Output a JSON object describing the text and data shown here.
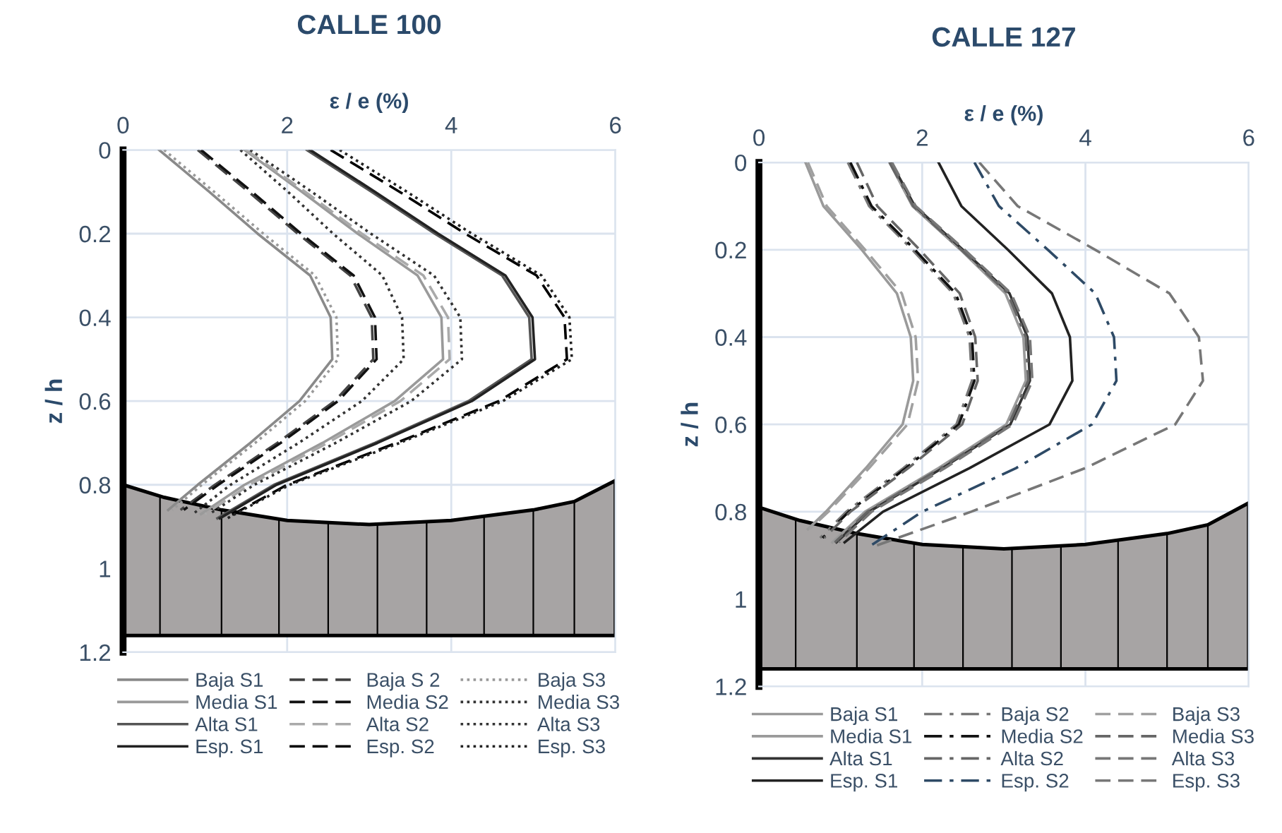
{
  "chart_data": [
    {
      "type": "line",
      "title": "CALLE 100",
      "xlabel": "ε / e (%)",
      "ylabel": "z / h",
      "xlim": [
        0,
        6
      ],
      "xticks": [
        0,
        2,
        4,
        6
      ],
      "ylim": [
        1.2,
        0
      ],
      "yticks": [
        0,
        0.2,
        0.4,
        0.6,
        0.8,
        1,
        1.2
      ],
      "grid": true,
      "legend": "bottom",
      "marker": "none",
      "series": [
        {
          "name": "Baja S1",
          "color": "#8a8a8a",
          "line_style": "solid",
          "x": [
            0.44,
            1.05,
            1.64,
            2.28,
            2.53,
            2.55,
            2.15,
            1.55,
            0.91,
            0.55
          ],
          "values": [
            0,
            0.1,
            0.2,
            0.3,
            0.4,
            0.5,
            0.6,
            0.7,
            0.8,
            0.86
          ]
        },
        {
          "name": "Media S1",
          "color": "#9a9a9a",
          "line_style": "solid",
          "x": [
            1.48,
            2.18,
            2.86,
            3.59,
            3.88,
            3.9,
            3.31,
            2.43,
            1.48,
            0.95
          ],
          "values": [
            0,
            0.1,
            0.2,
            0.3,
            0.4,
            0.5,
            0.6,
            0.7,
            0.8,
            0.87
          ]
        },
        {
          "name": "Alta S1",
          "color": "#555555",
          "line_style": "solid",
          "x": [
            2.24,
            3.03,
            3.8,
            4.62,
            4.95,
            4.98,
            4.21,
            3.07,
            1.84,
            1.15
          ],
          "values": [
            0,
            0.1,
            0.2,
            0.3,
            0.4,
            0.5,
            0.6,
            0.7,
            0.8,
            0.88
          ]
        },
        {
          "name": "Esp. S1",
          "color": "#222222",
          "line_style": "solid",
          "x": [
            2.28,
            3.07,
            3.84,
            4.66,
            4.99,
            5.02,
            4.25,
            3.1,
            1.87,
            1.18
          ],
          "values": [
            0,
            0.1,
            0.2,
            0.3,
            0.4,
            0.5,
            0.6,
            0.7,
            0.8,
            0.88
          ]
        },
        {
          "name": "Baja S 2",
          "color": "#444444",
          "line_style": "dashed",
          "x": [
            0.91,
            1.53,
            2.13,
            2.77,
            3.03,
            3.05,
            2.58,
            1.88,
            1.12,
            0.7
          ],
          "values": [
            0,
            0.1,
            0.2,
            0.3,
            0.4,
            0.5,
            0.6,
            0.7,
            0.8,
            0.86
          ]
        },
        {
          "name": "Media S2",
          "color": "#111111",
          "line_style": "dashed",
          "x": [
            0.95,
            1.57,
            2.17,
            2.81,
            3.07,
            3.09,
            2.62,
            1.92,
            1.16,
            0.74
          ],
          "values": [
            0,
            0.1,
            0.2,
            0.3,
            0.4,
            0.5,
            0.6,
            0.7,
            0.8,
            0.86
          ]
        },
        {
          "name": "Alta S2",
          "color": "#aaaaaa",
          "line_style": "dashed",
          "x": [
            1.5,
            2.22,
            2.91,
            3.66,
            3.96,
            3.98,
            3.38,
            2.49,
            1.54,
            1.0
          ],
          "values": [
            0,
            0.1,
            0.2,
            0.3,
            0.4,
            0.5,
            0.6,
            0.7,
            0.8,
            0.87
          ]
        },
        {
          "name": "Esp. S2",
          "color": "#000000",
          "line_style": "dashed",
          "x": [
            2.53,
            3.37,
            4.17,
            5.04,
            5.38,
            5.41,
            4.58,
            3.33,
            2.0,
            1.25
          ],
          "values": [
            0,
            0.1,
            0.2,
            0.3,
            0.4,
            0.5,
            0.6,
            0.7,
            0.8,
            0.88
          ]
        },
        {
          "name": "Baja S3",
          "color": "#9a9a9a",
          "line_style": "dotted",
          "x": [
            0.5,
            1.11,
            1.71,
            2.34,
            2.6,
            2.62,
            2.22,
            1.61,
            0.96,
            0.6
          ],
          "values": [
            0,
            0.1,
            0.2,
            0.3,
            0.4,
            0.5,
            0.6,
            0.7,
            0.8,
            0.86
          ]
        },
        {
          "name": "Media S3",
          "color": "#333333",
          "line_style": "dotted",
          "x": [
            1.43,
            2.01,
            2.56,
            3.16,
            3.4,
            3.42,
            2.91,
            2.14,
            1.31,
            0.85
          ],
          "values": [
            0,
            0.1,
            0.2,
            0.3,
            0.4,
            0.5,
            0.6,
            0.7,
            0.8,
            0.87
          ]
        },
        {
          "name": "Alta S3",
          "color": "#333333",
          "line_style": "dotted",
          "x": [
            1.55,
            2.3,
            3.02,
            3.79,
            4.11,
            4.13,
            3.51,
            2.59,
            1.6,
            1.05
          ],
          "values": [
            0,
            0.1,
            0.2,
            0.3,
            0.4,
            0.5,
            0.6,
            0.7,
            0.8,
            0.87
          ]
        },
        {
          "name": "Esp. S3",
          "color": "#222222",
          "line_style": "dotted",
          "x": [
            2.64,
            3.46,
            4.25,
            5.1,
            5.44,
            5.47,
            4.63,
            3.37,
            2.03,
            1.27
          ],
          "values": [
            0,
            0.1,
            0.2,
            0.3,
            0.4,
            0.5,
            0.6,
            0.7,
            0.8,
            0.88
          ]
        }
      ]
    },
    {
      "type": "line",
      "title": "CALLE 127",
      "xlabel": "ε / e (%)",
      "ylabel": "z / h",
      "xlim": [
        0,
        6
      ],
      "xticks": [
        0,
        2,
        4,
        6
      ],
      "ylim": [
        1.2,
        0
      ],
      "yticks": [
        0,
        0.2,
        0.4,
        0.6,
        0.8,
        1,
        1.2
      ],
      "grid": true,
      "legend": "bottom",
      "marker": "none",
      "series": [
        {
          "name": "Baja S1",
          "color": "#9a9a9a",
          "line_style": "solid",
          "x": [
            0.57,
            0.79,
            1.26,
            1.69,
            1.86,
            1.89,
            1.76,
            1.31,
            0.82,
            0.6
          ],
          "values": [
            0,
            0.1,
            0.2,
            0.3,
            0.4,
            0.5,
            0.6,
            0.7,
            0.8,
            0.84
          ]
        },
        {
          "name": "Media S1",
          "color": "#9a9a9a",
          "line_style": "solid",
          "x": [
            1.6,
            1.88,
            2.47,
            3.02,
            3.24,
            3.27,
            3.03,
            2.2,
            1.3,
            0.9
          ],
          "values": [
            0,
            0.1,
            0.2,
            0.3,
            0.4,
            0.5,
            0.6,
            0.7,
            0.8,
            0.87
          ]
        },
        {
          "name": "Alta S1",
          "color": "#333333",
          "line_style": "solid",
          "x": [
            1.62,
            1.91,
            2.5,
            3.07,
            3.29,
            3.32,
            3.08,
            2.25,
            1.35,
            0.95
          ],
          "values": [
            0,
            0.1,
            0.2,
            0.3,
            0.4,
            0.5,
            0.6,
            0.7,
            0.8,
            0.87
          ]
        },
        {
          "name": "Esp. S1",
          "color": "#222222",
          "line_style": "solid",
          "x": [
            2.2,
            2.48,
            3.05,
            3.59,
            3.81,
            3.84,
            3.56,
            2.58,
            1.52,
            1.05
          ],
          "values": [
            0,
            0.1,
            0.2,
            0.3,
            0.4,
            0.5,
            0.6,
            0.7,
            0.8,
            0.87
          ]
        },
        {
          "name": "Baja S2",
          "color": "#777777",
          "line_style": "dashdot",
          "x": [
            1.09,
            1.35,
            1.88,
            2.38,
            2.58,
            2.61,
            2.42,
            1.77,
            1.07,
            0.75
          ],
          "values": [
            0,
            0.1,
            0.2,
            0.3,
            0.4,
            0.5,
            0.6,
            0.7,
            0.8,
            0.86
          ]
        },
        {
          "name": "Media S2",
          "color": "#111111",
          "line_style": "dashdot",
          "x": [
            1.12,
            1.38,
            1.91,
            2.41,
            2.61,
            2.64,
            2.45,
            1.8,
            1.1,
            0.78
          ],
          "values": [
            0,
            0.1,
            0.2,
            0.3,
            0.4,
            0.5,
            0.6,
            0.7,
            0.8,
            0.86
          ]
        },
        {
          "name": "Alta S2",
          "color": "#666666",
          "line_style": "dashdot",
          "x": [
            1.6,
            1.89,
            2.48,
            3.05,
            3.27,
            3.3,
            3.06,
            2.23,
            1.33,
            0.93
          ],
          "values": [
            0,
            0.1,
            0.2,
            0.3,
            0.4,
            0.5,
            0.6,
            0.7,
            0.8,
            0.87
          ]
        },
        {
          "name": "Esp. S2",
          "color": "#2e4a66",
          "line_style": "dashdot",
          "x": [
            2.64,
            2.94,
            3.54,
            4.12,
            4.35,
            4.38,
            4.08,
            3.15,
            2.0,
            1.35
          ],
          "values": [
            0,
            0.1,
            0.2,
            0.3,
            0.4,
            0.5,
            0.6,
            0.7,
            0.8,
            0.88
          ]
        },
        {
          "name": "Baja S3",
          "color": "#a0a0a0",
          "line_style": "dashed",
          "x": [
            0.6,
            0.83,
            1.3,
            1.75,
            1.92,
            1.95,
            1.82,
            1.35,
            0.85,
            0.62
          ],
          "values": [
            0,
            0.1,
            0.2,
            0.3,
            0.4,
            0.5,
            0.6,
            0.7,
            0.8,
            0.84
          ]
        },
        {
          "name": "Media S3",
          "color": "#666666",
          "line_style": "dashed",
          "x": [
            1.2,
            1.45,
            1.97,
            2.46,
            2.65,
            2.68,
            2.49,
            1.83,
            1.12,
            0.8
          ],
          "values": [
            0,
            0.1,
            0.2,
            0.3,
            0.4,
            0.5,
            0.6,
            0.7,
            0.8,
            0.86
          ]
        },
        {
          "name": "Alta S3",
          "color": "#777777",
          "line_style": "dashed",
          "x": [
            1.63,
            1.92,
            2.52,
            3.09,
            3.32,
            3.35,
            3.11,
            2.28,
            1.38,
            0.98
          ],
          "values": [
            0,
            0.1,
            0.2,
            0.3,
            0.4,
            0.5,
            0.6,
            0.7,
            0.8,
            0.87
          ]
        },
        {
          "name": "Esp. S3",
          "color": "#777777",
          "line_style": "dashed",
          "x": [
            2.7,
            3.17,
            4.12,
            5.03,
            5.39,
            5.44,
            5.1,
            4.0,
            2.6,
            1.4
          ],
          "values": [
            0,
            0.1,
            0.2,
            0.3,
            0.4,
            0.5,
            0.6,
            0.7,
            0.8,
            0.88
          ]
        }
      ]
    }
  ]
}
